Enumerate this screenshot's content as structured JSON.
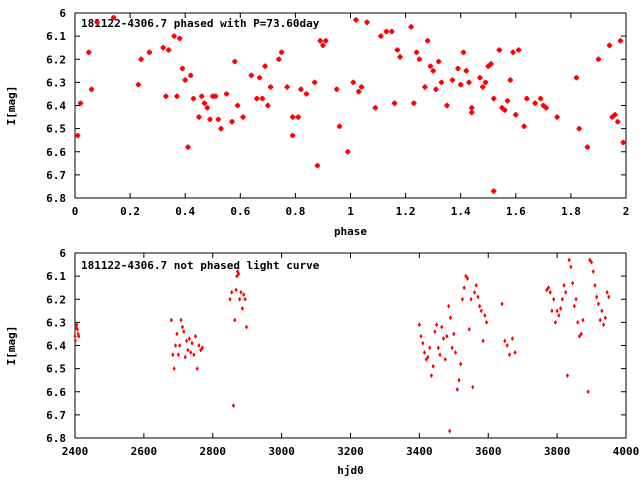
{
  "chart_data": [
    {
      "type": "scatter",
      "title": "181122-4306.7 phased with P=73.60day",
      "xlabel": "phase",
      "ylabel": "I[mag]",
      "xlim": [
        0,
        2
      ],
      "ylim": [
        6.8,
        6
      ],
      "y_inverted": true,
      "grid": false,
      "xticks": [
        "0",
        "0.2",
        "0.4",
        "0.6",
        "0.8",
        "1",
        "1.2",
        "1.4",
        "1.6",
        "1.8",
        "2"
      ],
      "yticks": [
        "6",
        "6.1",
        "6.2",
        "6.3",
        "6.4",
        "6.5",
        "6.6",
        "6.7",
        "6.8"
      ],
      "marker_color": "#ff0000",
      "points": [
        [
          0.01,
          6.53
        ],
        [
          0.02,
          6.39
        ],
        [
          0.05,
          6.17
        ],
        [
          0.06,
          6.33
        ],
        [
          0.08,
          6.04
        ],
        [
          0.14,
          6.02
        ],
        [
          0.23,
          6.31
        ],
        [
          0.24,
          6.2
        ],
        [
          0.27,
          6.17
        ],
        [
          0.32,
          6.15
        ],
        [
          0.33,
          6.36
        ],
        [
          0.34,
          6.16
        ],
        [
          0.36,
          6.1
        ],
        [
          0.37,
          6.36
        ],
        [
          0.38,
          6.11
        ],
        [
          0.39,
          6.24
        ],
        [
          0.4,
          6.29
        ],
        [
          0.41,
          6.58
        ],
        [
          0.42,
          6.27
        ],
        [
          0.43,
          6.37
        ],
        [
          0.45,
          6.45
        ],
        [
          0.46,
          6.36
        ],
        [
          0.47,
          6.39
        ],
        [
          0.48,
          6.41
        ],
        [
          0.49,
          6.46
        ],
        [
          0.5,
          6.36
        ],
        [
          0.51,
          6.36
        ],
        [
          0.52,
          6.46
        ],
        [
          0.53,
          6.5
        ],
        [
          0.55,
          6.35
        ],
        [
          0.57,
          6.47
        ],
        [
          0.58,
          6.21
        ],
        [
          0.59,
          6.4
        ],
        [
          0.61,
          6.45
        ],
        [
          0.64,
          6.27
        ],
        [
          0.66,
          6.37
        ],
        [
          0.67,
          6.28
        ],
        [
          0.68,
          6.37
        ],
        [
          0.69,
          6.23
        ],
        [
          0.7,
          6.4
        ],
        [
          0.71,
          6.32
        ],
        [
          0.74,
          6.2
        ],
        [
          0.75,
          6.17
        ],
        [
          0.77,
          6.32
        ],
        [
          0.79,
          6.45
        ],
        [
          0.79,
          6.53
        ],
        [
          0.81,
          6.45
        ],
        [
          0.82,
          6.33
        ],
        [
          0.84,
          6.35
        ],
        [
          0.87,
          6.3
        ],
        [
          0.88,
          6.66
        ],
        [
          0.89,
          6.12
        ],
        [
          0.9,
          6.14
        ],
        [
          0.91,
          6.12
        ],
        [
          0.95,
          6.33
        ],
        [
          0.96,
          6.49
        ],
        [
          0.99,
          6.6
        ],
        [
          1.01,
          6.3
        ],
        [
          1.02,
          6.03
        ],
        [
          1.03,
          6.34
        ],
        [
          1.04,
          6.32
        ],
        [
          1.06,
          6.04
        ],
        [
          1.09,
          6.41
        ],
        [
          1.11,
          6.1
        ],
        [
          1.13,
          6.08
        ],
        [
          1.15,
          6.08
        ],
        [
          1.16,
          6.39
        ],
        [
          1.17,
          6.16
        ],
        [
          1.18,
          6.19
        ],
        [
          1.22,
          6.06
        ],
        [
          1.23,
          6.39
        ],
        [
          1.24,
          6.17
        ],
        [
          1.25,
          6.2
        ],
        [
          1.27,
          6.32
        ],
        [
          1.28,
          6.12
        ],
        [
          1.29,
          6.23
        ],
        [
          1.3,
          6.25
        ],
        [
          1.31,
          6.33
        ],
        [
          1.32,
          6.21
        ],
        [
          1.33,
          6.3
        ],
        [
          1.35,
          6.4
        ],
        [
          1.37,
          6.29
        ],
        [
          1.39,
          6.24
        ],
        [
          1.4,
          6.31
        ],
        [
          1.41,
          6.17
        ],
        [
          1.42,
          6.25
        ],
        [
          1.43,
          6.3
        ],
        [
          1.44,
          6.41
        ],
        [
          1.44,
          6.43
        ],
        [
          1.47,
          6.28
        ],
        [
          1.48,
          6.32
        ],
        [
          1.49,
          6.3
        ],
        [
          1.5,
          6.23
        ],
        [
          1.51,
          6.22
        ],
        [
          1.52,
          6.37
        ],
        [
          1.52,
          6.77
        ],
        [
          1.54,
          6.16
        ],
        [
          1.55,
          6.41
        ],
        [
          1.56,
          6.42
        ],
        [
          1.57,
          6.38
        ],
        [
          1.58,
          6.29
        ],
        [
          1.59,
          6.17
        ],
        [
          1.6,
          6.44
        ],
        [
          1.61,
          6.16
        ],
        [
          1.63,
          6.49
        ],
        [
          1.64,
          6.37
        ],
        [
          1.67,
          6.39
        ],
        [
          1.69,
          6.37
        ],
        [
          1.7,
          6.4
        ],
        [
          1.71,
          6.41
        ],
        [
          1.75,
          6.45
        ],
        [
          1.82,
          6.28
        ],
        [
          1.83,
          6.5
        ],
        [
          1.86,
          6.58
        ],
        [
          1.9,
          6.2
        ],
        [
          1.94,
          6.14
        ],
        [
          1.95,
          6.45
        ],
        [
          1.96,
          6.44
        ],
        [
          1.97,
          6.47
        ],
        [
          1.98,
          6.12
        ],
        [
          1.99,
          6.56
        ]
      ]
    },
    {
      "type": "scatter",
      "title": "181122-4306.7 not phased light curve",
      "xlabel": "hjd0",
      "ylabel": "I[mag]",
      "xlim": [
        2400,
        4000
      ],
      "ylim": [
        6.8,
        6
      ],
      "y_inverted": true,
      "grid": false,
      "xticks": [
        "2400",
        "2600",
        "2800",
        "3000",
        "3200",
        "3400",
        "3600",
        "3800",
        "4000"
      ],
      "yticks": [
        "6",
        "6.1",
        "6.2",
        "6.3",
        "6.4",
        "6.5",
        "6.6",
        "6.7",
        "6.8"
      ],
      "marker_color": "#ff0000",
      "points": [
        [
          2400,
          6.36
        ],
        [
          2401,
          6.38
        ],
        [
          2403,
          6.32
        ],
        [
          2405,
          6.31
        ],
        [
          2407,
          6.33
        ],
        [
          2409,
          6.35
        ],
        [
          2411,
          6.36
        ],
        [
          2680,
          6.29
        ],
        [
          2684,
          6.44
        ],
        [
          2688,
          6.5
        ],
        [
          2692,
          6.4
        ],
        [
          2696,
          6.35
        ],
        [
          2700,
          6.44
        ],
        [
          2704,
          6.4
        ],
        [
          2708,
          6.29
        ],
        [
          2712,
          6.32
        ],
        [
          2716,
          6.34
        ],
        [
          2720,
          6.45
        ],
        [
          2724,
          6.38
        ],
        [
          2728,
          6.42
        ],
        [
          2732,
          6.37
        ],
        [
          2736,
          6.43
        ],
        [
          2740,
          6.39
        ],
        [
          2745,
          6.44
        ],
        [
          2750,
          6.36
        ],
        [
          2755,
          6.5
        ],
        [
          2760,
          6.4
        ],
        [
          2765,
          6.42
        ],
        [
          2770,
          6.41
        ],
        [
          2850,
          6.2
        ],
        [
          2855,
          6.17
        ],
        [
          2860,
          6.66
        ],
        [
          2864,
          6.29
        ],
        [
          2868,
          6.16
        ],
        [
          2870,
          6.1
        ],
        [
          2872,
          6.08
        ],
        [
          2875,
          6.09
        ],
        [
          2878,
          6.2
        ],
        [
          2882,
          6.17
        ],
        [
          2886,
          6.24
        ],
        [
          2890,
          6.18
        ],
        [
          2894,
          6.2
        ],
        [
          2898,
          6.32
        ],
        [
          3400,
          6.31
        ],
        [
          3405,
          6.36
        ],
        [
          3410,
          6.39
        ],
        [
          3415,
          6.43
        ],
        [
          3420,
          6.46
        ],
        [
          3425,
          6.45
        ],
        [
          3430,
          6.41
        ],
        [
          3435,
          6.53
        ],
        [
          3440,
          6.49
        ],
        [
          3445,
          6.34
        ],
        [
          3450,
          6.31
        ],
        [
          3455,
          6.41
        ],
        [
          3460,
          6.44
        ],
        [
          3465,
          6.32
        ],
        [
          3470,
          6.37
        ],
        [
          3475,
          6.46
        ],
        [
          3480,
          6.36
        ],
        [
          3485,
          6.23
        ],
        [
          3488,
          6.77
        ],
        [
          3490,
          6.28
        ],
        [
          3495,
          6.41
        ],
        [
          3500,
          6.35
        ],
        [
          3505,
          6.43
        ],
        [
          3510,
          6.59
        ],
        [
          3515,
          6.55
        ],
        [
          3520,
          6.48
        ],
        [
          3525,
          6.2
        ],
        [
          3530,
          6.15
        ],
        [
          3535,
          6.1
        ],
        [
          3540,
          6.11
        ],
        [
          3545,
          6.33
        ],
        [
          3550,
          6.2
        ],
        [
          3555,
          6.58
        ],
        [
          3560,
          6.17
        ],
        [
          3565,
          6.14
        ],
        [
          3570,
          6.19
        ],
        [
          3575,
          6.23
        ],
        [
          3580,
          6.25
        ],
        [
          3585,
          6.38
        ],
        [
          3590,
          6.27
        ],
        [
          3595,
          6.3
        ],
        [
          3640,
          6.22
        ],
        [
          3648,
          6.38
        ],
        [
          3655,
          6.4
        ],
        [
          3662,
          6.44
        ],
        [
          3670,
          6.37
        ],
        [
          3678,
          6.43
        ],
        [
          3770,
          6.16
        ],
        [
          3775,
          6.15
        ],
        [
          3780,
          6.17
        ],
        [
          3785,
          6.25
        ],
        [
          3790,
          6.2
        ],
        [
          3795,
          6.3
        ],
        [
          3800,
          6.25
        ],
        [
          3805,
          6.27
        ],
        [
          3810,
          6.24
        ],
        [
          3815,
          6.2
        ],
        [
          3820,
          6.14
        ],
        [
          3825,
          6.17
        ],
        [
          3830,
          6.53
        ],
        [
          3835,
          6.03
        ],
        [
          3840,
          6.06
        ],
        [
          3845,
          6.13
        ],
        [
          3850,
          6.23
        ],
        [
          3855,
          6.2
        ],
        [
          3860,
          6.3
        ],
        [
          3865,
          6.36
        ],
        [
          3870,
          6.35
        ],
        [
          3875,
          6.29
        ],
        [
          3890,
          6.6
        ],
        [
          3895,
          6.03
        ],
        [
          3900,
          6.04
        ],
        [
          3905,
          6.08
        ],
        [
          3910,
          6.14
        ],
        [
          3915,
          6.19
        ],
        [
          3920,
          6.22
        ],
        [
          3925,
          6.29
        ],
        [
          3930,
          6.25
        ],
        [
          3935,
          6.31
        ],
        [
          3940,
          6.28
        ],
        [
          3945,
          6.17
        ],
        [
          3950,
          6.19
        ]
      ]
    }
  ]
}
